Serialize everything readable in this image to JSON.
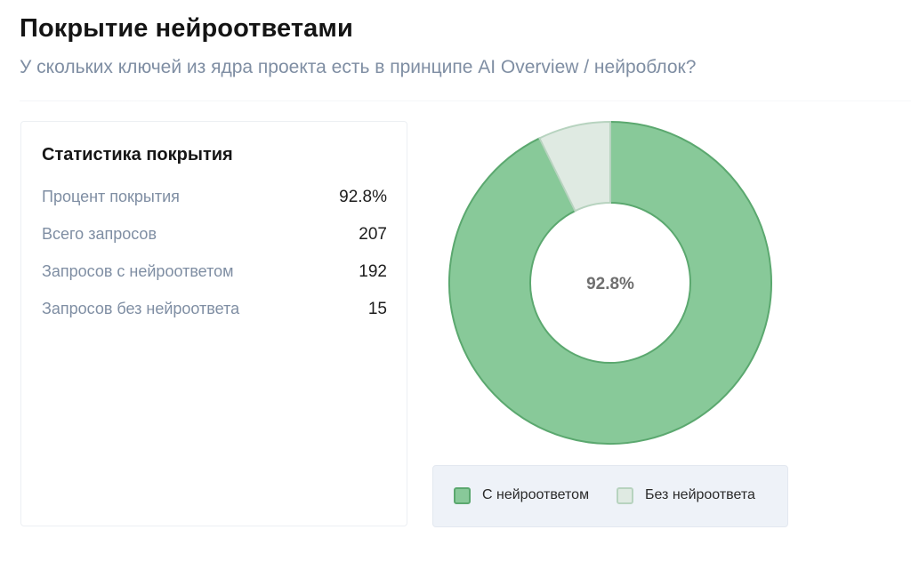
{
  "header": {
    "title": "Покрытие нейроответами",
    "subtitle": "У скольких ключей из ядра проекта есть в принципе AI Overview / нейроблок?"
  },
  "stats": {
    "title": "Статистика покрытия",
    "rows": [
      {
        "label": "Процент покрытия",
        "value": "92.8%"
      },
      {
        "label": "Всего запросов",
        "value": "207"
      },
      {
        "label": "Запросов с нейроответом",
        "value": "192"
      },
      {
        "label": "Запросов без нейроответа",
        "value": "15"
      }
    ]
  },
  "chart_data": {
    "type": "pie",
    "variant": "doughnut",
    "center_label": "92.8%",
    "categories": [
      "С нейроответом",
      "Без нейроответа"
    ],
    "values": [
      192,
      15
    ],
    "colors": [
      "#88c999",
      "#dfeae2"
    ],
    "border_colors": [
      "#5ba86f",
      "#b7d3bf"
    ],
    "legend_position": "bottom"
  },
  "legend": {
    "items": [
      {
        "label": "С нейроответом"
      },
      {
        "label": "Без нейроответа"
      }
    ]
  }
}
